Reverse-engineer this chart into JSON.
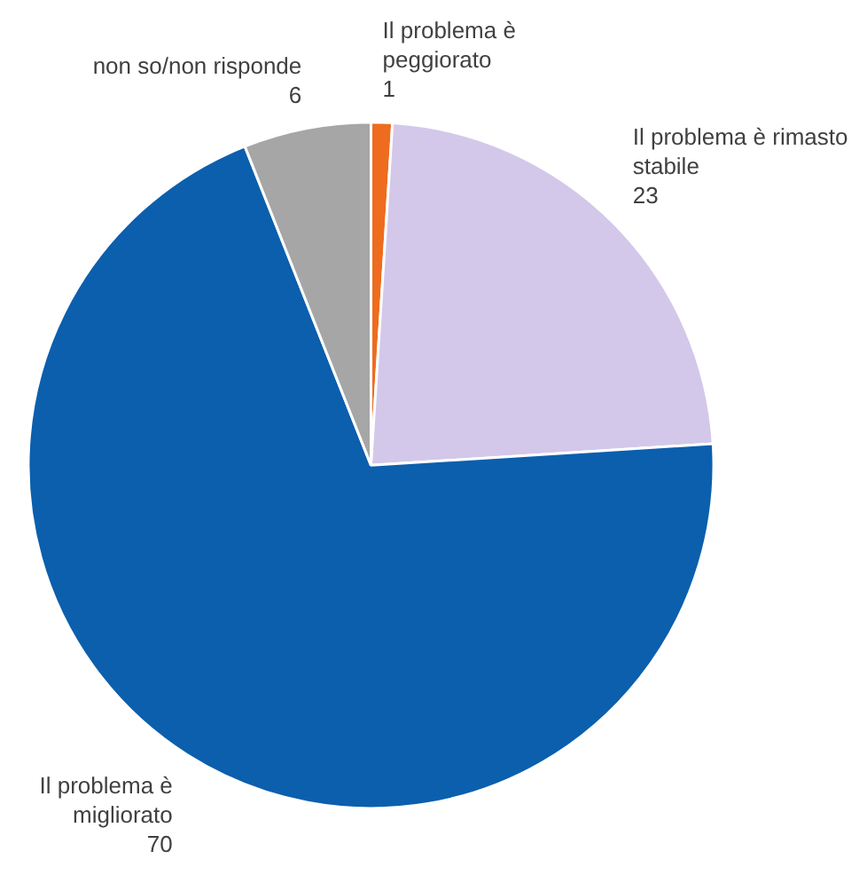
{
  "chart_data": {
    "type": "pie",
    "categories": [
      "Il problema è peggiorato",
      "Il problema è rimasto stabile",
      "Il problema è migliorato",
      "non so/non risponde"
    ],
    "values": [
      1,
      23,
      70,
      6
    ],
    "colors": [
      "#ee6c1e",
      "#d3c8e9",
      "#0b5fad",
      "#a6a6a6"
    ],
    "data_labels": true
  }
}
